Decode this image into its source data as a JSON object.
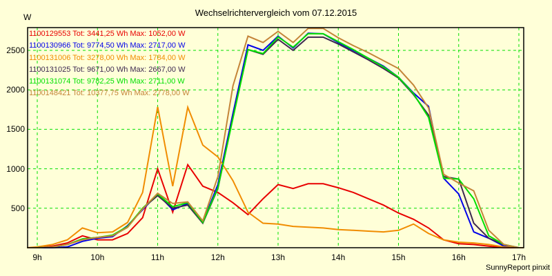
{
  "chart_data": {
    "type": "line",
    "title": "Wechselrichtervergleich vom 07.12.2015",
    "xlabel": "",
    "ylabel": "W",
    "xlim": [
      8.83,
      17.08
    ],
    "ylim": [
      0,
      2780
    ],
    "x_ticks": [
      "9h",
      "10h",
      "11h",
      "12h",
      "13h",
      "14h",
      "15h",
      "16h",
      "17h"
    ],
    "y_ticks": [
      500,
      1000,
      1500,
      2000,
      2500
    ],
    "grid": true,
    "legend_position": "top-left inside",
    "footer": "SunnyReport pinxit",
    "x": [
      8.83,
      9.0,
      9.25,
      9.5,
      9.75,
      10.0,
      10.25,
      10.5,
      10.75,
      11.0,
      11.25,
      11.5,
      11.75,
      12.0,
      12.25,
      12.5,
      12.75,
      13.0,
      13.25,
      13.5,
      13.75,
      14.0,
      14.25,
      14.5,
      14.75,
      15.0,
      15.25,
      15.5,
      15.75,
      16.0,
      16.25,
      16.5,
      16.75,
      17.0,
      17.08
    ],
    "series": [
      {
        "name": "1100129553 Tot: 3441,25 Wh Max: 1052,00 W",
        "color": "#e80000",
        "values": [
          0,
          0,
          20,
          60,
          150,
          100,
          100,
          180,
          380,
          1000,
          450,
          1052,
          780,
          700,
          570,
          420,
          620,
          800,
          750,
          810,
          810,
          760,
          700,
          620,
          540,
          440,
          360,
          250,
          100,
          50,
          40,
          20,
          0,
          0,
          0
        ]
      },
      {
        "name": "1100130966 Tot: 9774,50 Wh Max: 2717,00 W",
        "color": "#0000e8",
        "values": [
          0,
          0,
          0,
          10,
          80,
          120,
          140,
          280,
          480,
          680,
          480,
          560,
          320,
          800,
          1700,
          2570,
          2500,
          2680,
          2530,
          2717,
          2710,
          2600,
          2500,
          2400,
          2300,
          2160,
          1960,
          1790,
          880,
          680,
          200,
          120,
          20,
          0,
          0
        ]
      },
      {
        "name": "1100131006 Tot: 3278,00 Wh Max: 1784,00 W",
        "color": "#f08c00",
        "values": [
          0,
          10,
          40,
          100,
          250,
          190,
          200,
          320,
          700,
          1784,
          780,
          1780,
          1300,
          1150,
          850,
          450,
          310,
          300,
          270,
          260,
          250,
          230,
          220,
          210,
          200,
          220,
          300,
          180,
          100,
          70,
          60,
          40,
          10,
          0,
          0
        ]
      },
      {
        "name": "1100131025 Tot: 9671,00 Wh Max: 2667,00 W",
        "color": "#3c2850",
        "values": [
          0,
          0,
          10,
          40,
          110,
          130,
          150,
          260,
          500,
          660,
          500,
          540,
          310,
          750,
          1650,
          2510,
          2450,
          2640,
          2500,
          2667,
          2667,
          2580,
          2480,
          2380,
          2270,
          2150,
          1940,
          1680,
          900,
          870,
          310,
          120,
          40,
          0,
          0
        ]
      },
      {
        "name": "1100131074 Tot: 9782,25 Wh Max: 2711,00 W",
        "color": "#00e000",
        "values": [
          0,
          0,
          10,
          40,
          110,
          130,
          160,
          270,
          500,
          680,
          520,
          570,
          320,
          760,
          1640,
          2510,
          2460,
          2670,
          2540,
          2711,
          2711,
          2610,
          2510,
          2400,
          2290,
          2160,
          1950,
          1650,
          880,
          870,
          620,
          150,
          40,
          0,
          0
        ]
      },
      {
        "name": "1100148421 Tot: 10377,75 Wh Max: 2778,00 W",
        "color": "#c48438",
        "values": [
          0,
          0,
          10,
          40,
          100,
          130,
          150,
          260,
          490,
          690,
          560,
          580,
          340,
          900,
          2050,
          2680,
          2600,
          2740,
          2600,
          2778,
          2778,
          2660,
          2560,
          2470,
          2370,
          2270,
          2060,
          1770,
          930,
          820,
          720,
          220,
          40,
          0,
          0
        ]
      }
    ]
  }
}
